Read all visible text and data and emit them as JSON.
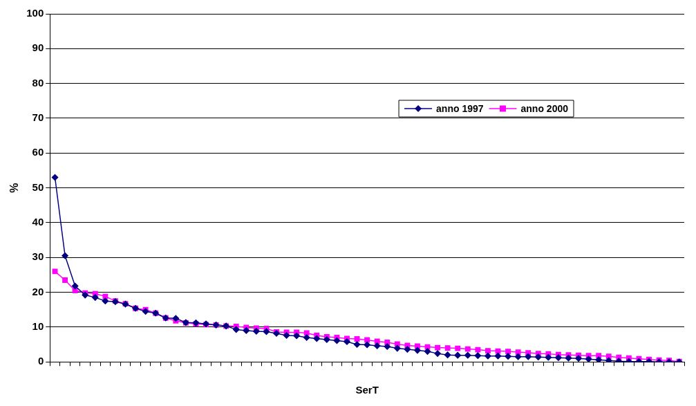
{
  "chart_data": {
    "type": "line",
    "xlabel": "SerT",
    "ylabel": "%",
    "categories": [
      null,
      null,
      null,
      null,
      null,
      null,
      null,
      null,
      null,
      null,
      null,
      null,
      null,
      null,
      null,
      null,
      null,
      null,
      null,
      null,
      null,
      null,
      null,
      null,
      null,
      null,
      null,
      null,
      null,
      null,
      null,
      null,
      null,
      null,
      null,
      null,
      null,
      null,
      null,
      null,
      null,
      null,
      null,
      null,
      null,
      null,
      null,
      null,
      null,
      null,
      null,
      null,
      null,
      null,
      null,
      null,
      null,
      null,
      null,
      null,
      null,
      null,
      null
    ],
    "series": [
      {
        "name": "anno 1997",
        "color": "#000080",
        "marker": "diamond",
        "values": [
          53,
          30.5,
          21.8,
          19.2,
          18.5,
          17.5,
          17.3,
          16.6,
          15.4,
          14.5,
          14,
          12.6,
          12.5,
          11.3,
          11.2,
          10.9,
          10.6,
          10.3,
          9.3,
          9.0,
          8.8,
          8.7,
          8.2,
          7.6,
          7.5,
          7.0,
          6.7,
          6.4,
          6.1,
          5.8,
          5.0,
          4.9,
          4.6,
          4.4,
          3.9,
          3.6,
          3.3,
          3.0,
          2.4,
          2.0,
          1.9,
          1.9,
          1.8,
          1.7,
          1.7,
          1.6,
          1.5,
          1.5,
          1.4,
          1.3,
          1.2,
          1.1,
          1.0,
          0.8,
          0.6,
          0.4,
          0.2,
          0.1,
          0.1,
          0.1,
          0,
          0,
          0
        ]
      },
      {
        "name": "anno 2000",
        "color": "#ff00ff",
        "marker": "square",
        "values": [
          26,
          23.5,
          20.5,
          19.8,
          19.6,
          18.8,
          17.5,
          16.7,
          15.4,
          15.0,
          14.0,
          12.6,
          11.8,
          11.2,
          10.9,
          10.7,
          10.6,
          10.3,
          10.2,
          9.9,
          9.7,
          9.6,
          8.6,
          8.5,
          8.5,
          8.3,
          7.6,
          7.2,
          7.0,
          6.7,
          6.6,
          6.3,
          5.9,
          5.6,
          5.1,
          4.7,
          4.5,
          4.3,
          4.1,
          4.0,
          3.9,
          3.7,
          3.5,
          3.2,
          3.1,
          3.0,
          2.8,
          2.6,
          2.4,
          2.3,
          2.1,
          2.0,
          1.9,
          1.8,
          1.8,
          1.6,
          1.3,
          1.1,
          0.9,
          0.7,
          0.5,
          0.4,
          0.1
        ]
      }
    ],
    "ylim": [
      0,
      100
    ],
    "yticks": [
      0,
      10,
      20,
      30,
      40,
      50,
      60,
      70,
      80,
      90,
      100
    ],
    "grid": "y",
    "legend": "top right",
    "line_style": "solid"
  }
}
